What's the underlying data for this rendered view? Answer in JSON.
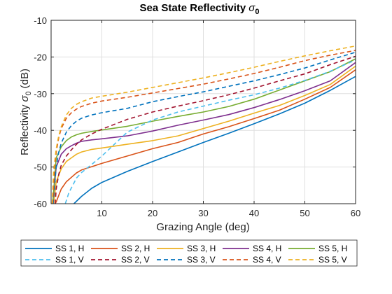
{
  "chart_data": {
    "type": "line",
    "title": "Sea State Reflectivity",
    "title_symbol": "σ",
    "title_subscript": "0",
    "xlabel": "Grazing Angle (deg)",
    "ylabel": "Reflectivity",
    "ylabel_symbol": "σ",
    "ylabel_subscript": "0",
    "ylabel_unit": "(dB)",
    "xlim": [
      0,
      60
    ],
    "ylim": [
      -60,
      -10
    ],
    "xticks": [
      "10",
      "20",
      "30",
      "40",
      "50",
      "60"
    ],
    "yticks": [
      "-10",
      "-20",
      "-30",
      "-40",
      "-50",
      "-60"
    ],
    "grid": true,
    "legend_placement": "bottom-outside",
    "series": [
      {
        "name": "SS 1, H",
        "color": "#0072BD",
        "style": "solid",
        "x": [
          4.5,
          6,
          8,
          10,
          15,
          20,
          25,
          30,
          35,
          40,
          45,
          50,
          55,
          60
        ],
        "y": [
          -60,
          -58,
          -55.8,
          -54.2,
          -51.2,
          -48.5,
          -45.9,
          -43.3,
          -40.8,
          -38.2,
          -35.5,
          -32.6,
          -29.1,
          -25.3
        ]
      },
      {
        "name": "SS 2, H",
        "color": "#D95319",
        "style": "solid",
        "x": [
          0.8,
          1,
          2,
          3,
          4,
          5,
          6,
          8,
          10,
          15,
          20,
          25,
          30,
          35,
          40,
          45,
          50,
          55,
          60
        ],
        "y": [
          -60,
          -59.5,
          -56,
          -54,
          -52.8,
          -51.6,
          -50.8,
          -49.9,
          -49,
          -47,
          -45,
          -43.3,
          -41,
          -39,
          -36.8,
          -34.5,
          -31.5,
          -28.3,
          -23.5
        ]
      },
      {
        "name": "SS 3, H",
        "color": "#EDB120",
        "style": "solid",
        "x": [
          0.5,
          1,
          2,
          3,
          4,
          5,
          6,
          8,
          10,
          15,
          20,
          25,
          30,
          35,
          40,
          45,
          50,
          55,
          60
        ],
        "y": [
          -60,
          -54,
          -50.5,
          -48.5,
          -47.5,
          -46.5,
          -45.9,
          -45.2,
          -44.8,
          -43.8,
          -42.8,
          -41.5,
          -39.5,
          -37.5,
          -35.3,
          -33.2,
          -30.5,
          -27.5,
          -22.5
        ]
      },
      {
        "name": "SS 4, H",
        "color": "#7E2F8E",
        "style": "solid",
        "x": [
          0.3,
          1,
          2,
          3,
          4,
          5,
          6,
          8,
          10,
          15,
          20,
          25,
          30,
          35,
          40,
          45,
          50,
          55,
          60
        ],
        "y": [
          -60,
          -50,
          -46.5,
          -45,
          -44.2,
          -43.5,
          -43,
          -42.6,
          -42.3,
          -41.5,
          -40.2,
          -38.6,
          -37.2,
          -35.7,
          -33.8,
          -31.6,
          -29.2,
          -26.5,
          -21.5
        ]
      },
      {
        "name": "SS 5, H",
        "color": "#77AC30",
        "style": "solid",
        "x": [
          0.3,
          1,
          2,
          3,
          4,
          5,
          6,
          8,
          10,
          15,
          20,
          25,
          30,
          35,
          40,
          45,
          50,
          55,
          60
        ],
        "y": [
          -60,
          -47.5,
          -44.5,
          -42.8,
          -41.8,
          -41.2,
          -40.8,
          -40.3,
          -39.9,
          -38.9,
          -37.5,
          -36.2,
          -35,
          -33.5,
          -31.5,
          -29,
          -26.5,
          -24,
          -20.5
        ]
      },
      {
        "name": "SS 1, V",
        "color": "#4DBEEE",
        "style": "dashed",
        "x": [
          2.8,
          3.5,
          5,
          6,
          8,
          10,
          15,
          20,
          25,
          30,
          35,
          40,
          45,
          50,
          55,
          60
        ],
        "y": [
          -60,
          -57,
          -53,
          -51.5,
          -49.3,
          -47,
          -40.5,
          -37.2,
          -35,
          -33.4,
          -31.8,
          -30.3,
          -28.5,
          -26.4,
          -23.9,
          -20.8
        ]
      },
      {
        "name": "SS 2, V",
        "color": "#A2142F",
        "style": "dashed",
        "x": [
          0.8,
          1,
          1.5,
          2,
          3,
          4,
          5,
          6,
          8,
          10,
          15,
          20,
          25,
          30,
          35,
          40,
          45,
          50,
          55,
          60
        ],
        "y": [
          -60,
          -56,
          -52,
          -49.5,
          -47,
          -45.3,
          -43.8,
          -42.6,
          -41,
          -39.7,
          -37,
          -35,
          -33.4,
          -31.9,
          -30.3,
          -28.5,
          -26.5,
          -24.6,
          -22.1,
          -19.8
        ]
      },
      {
        "name": "SS 3, V",
        "color": "#0072BD",
        "style": "dashed",
        "x": [
          0.4,
          1,
          1.5,
          2,
          3,
          4,
          5,
          6,
          8,
          10,
          15,
          20,
          25,
          30,
          35,
          40,
          45,
          50,
          55,
          60
        ],
        "y": [
          -60,
          -50,
          -46,
          -43.5,
          -40.5,
          -38.7,
          -37.5,
          -36.7,
          -35.8,
          -35.2,
          -34,
          -32.2,
          -30.8,
          -29.5,
          -28,
          -26.5,
          -24.8,
          -23,
          -20.8,
          -18.7
        ]
      },
      {
        "name": "SS 4, V",
        "color": "#D95319",
        "style": "dashed",
        "x": [
          0.3,
          0.7,
          1,
          1.5,
          2,
          3,
          4,
          5,
          6,
          8,
          10,
          15,
          20,
          25,
          30,
          35,
          40,
          45,
          50,
          55,
          60
        ],
        "y": [
          -60,
          -50,
          -46,
          -42,
          -39.5,
          -36.7,
          -35.2,
          -34.2,
          -33.5,
          -32.6,
          -32,
          -31,
          -29.8,
          -28.6,
          -27.4,
          -26,
          -24.5,
          -22.8,
          -21,
          -19.5,
          -18.2
        ]
      },
      {
        "name": "SS 5, V",
        "color": "#EDB120",
        "style": "dashed",
        "x": [
          0.2,
          0.5,
          1,
          1.5,
          2,
          3,
          4,
          5,
          6,
          8,
          10,
          15,
          20,
          25,
          30,
          35,
          40,
          45,
          50,
          55,
          60
        ],
        "y": [
          -60,
          -51,
          -45,
          -41.5,
          -39,
          -35.8,
          -34,
          -32.9,
          -32.2,
          -31.2,
          -30.7,
          -29.6,
          -28.3,
          -27,
          -25.7,
          -24.3,
          -22.8,
          -21.2,
          -19.7,
          -18.3,
          -17
        ]
      }
    ]
  }
}
